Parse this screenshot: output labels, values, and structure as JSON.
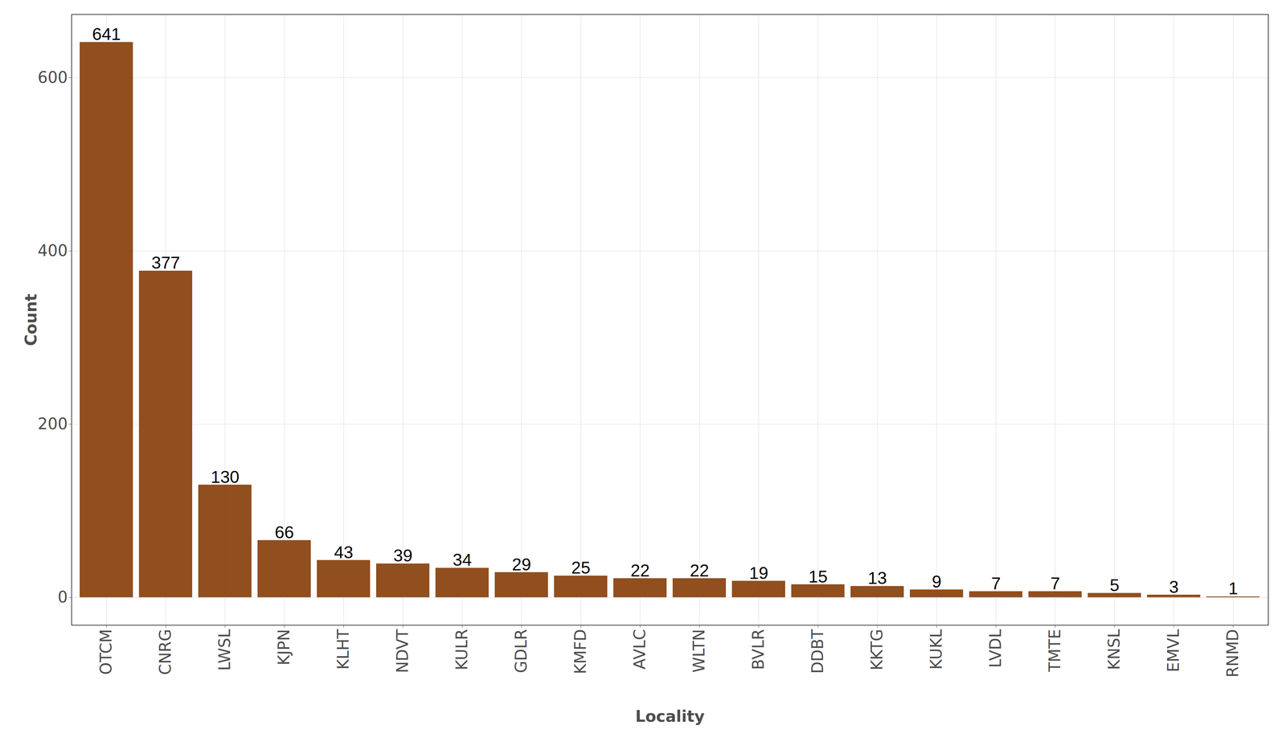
{
  "chart_data": {
    "type": "bar",
    "x_label": "Locality",
    "y_label": "Count",
    "categories": [
      "OTCM",
      "CNRG",
      "LWSL",
      "KJPN",
      "KLHT",
      "NDVT",
      "KULR",
      "GDLR",
      "KMFD",
      "AVLC",
      "WLTN",
      "BVLR",
      "DDBT",
      "KKTG",
      "KUKL",
      "LVDL",
      "TMTE",
      "KNSL",
      "EMVL",
      "RNMD"
    ],
    "values": [
      641,
      377,
      130,
      66,
      43,
      39,
      34,
      29,
      25,
      22,
      22,
      19,
      15,
      13,
      9,
      7,
      7,
      5,
      3,
      1
    ],
    "color": "#8B4513",
    "ylim": [
      -32,
      673
    ],
    "yticks": [
      0,
      200,
      400,
      600
    ],
    "grid": true,
    "data_labels": true
  }
}
